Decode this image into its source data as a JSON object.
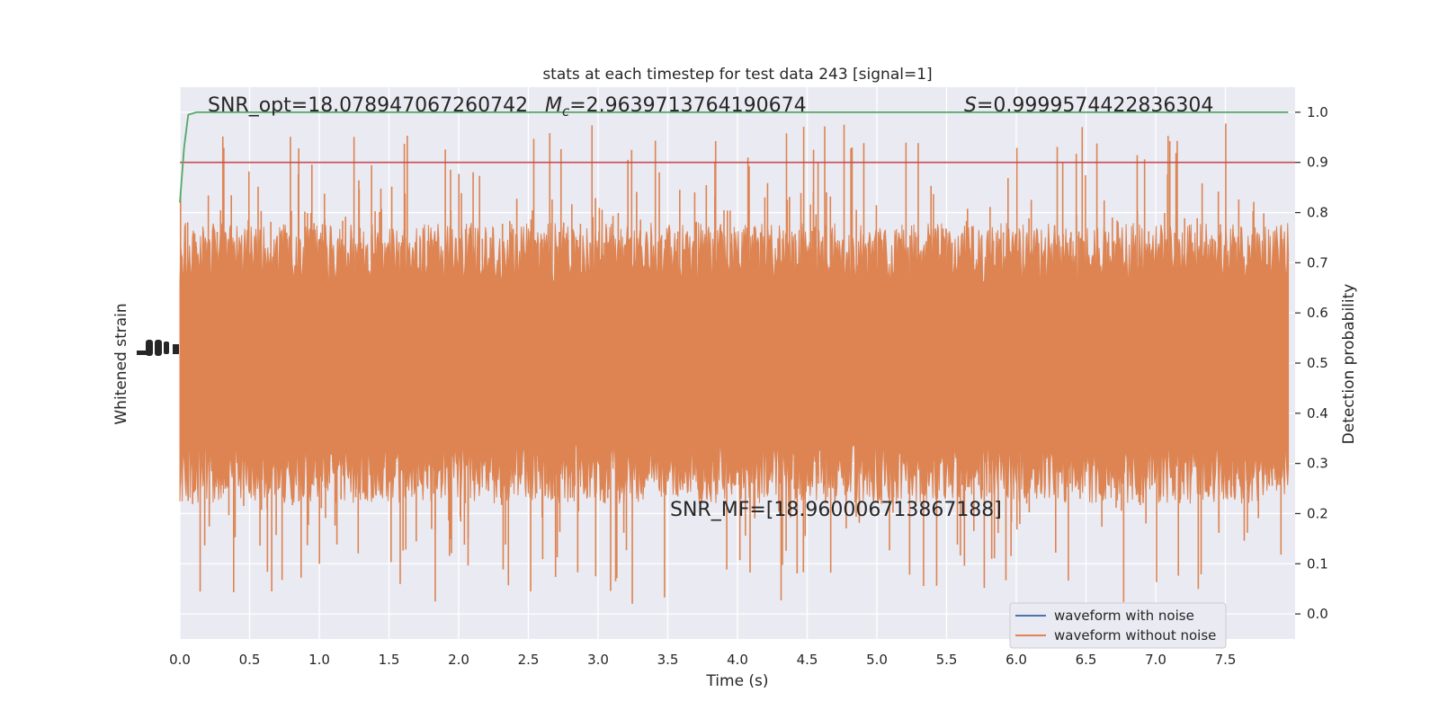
{
  "chart_data": {
    "type": "line",
    "title": "stats at each timestep for test data 243 [signal=1]",
    "xlabel": "Time (s)",
    "ylabel_left": "Whitened strain",
    "ylabel_right": "Detection probability",
    "xlim": [
      0.0,
      8.0
    ],
    "ylim_right": [
      -0.05,
      1.05
    ],
    "xticks": [
      "0.0",
      "0.5",
      "1.0",
      "1.5",
      "2.0",
      "2.5",
      "3.0",
      "3.5",
      "4.0",
      "4.5",
      "5.0",
      "5.5",
      "6.0",
      "6.5",
      "7.0",
      "7.5"
    ],
    "yticks_right": [
      "0.0",
      "0.1",
      "0.2",
      "0.3",
      "0.4",
      "0.5",
      "0.6",
      "0.7",
      "0.8",
      "0.9",
      "1.0"
    ],
    "grid": true,
    "legend_position": "lower-right",
    "annotations": {
      "snr_opt": "SNR_opt=18.078947067260742",
      "mc_symbol": "M",
      "mc_subscript": "c",
      "mc_value": "=2.9639713764190674",
      "s_symbol": "S",
      "s_value": "=0.9999574422836304",
      "snr_mf": "SNR_MF=[18.960006713867188]"
    },
    "series": [
      {
        "name": "waveform with noise",
        "color": "#4c72b0"
      },
      {
        "name": "waveform without noise",
        "color": "#dd8452"
      }
    ],
    "detection_probability": {
      "color": "#55a868",
      "points": [
        [
          0.0,
          0.82
        ],
        [
          0.03,
          0.93
        ],
        [
          0.06,
          0.995
        ],
        [
          0.12,
          1.0
        ],
        [
          7.95,
          1.0
        ]
      ]
    },
    "threshold": {
      "value": 0.9,
      "color": "#c44e52"
    }
  }
}
